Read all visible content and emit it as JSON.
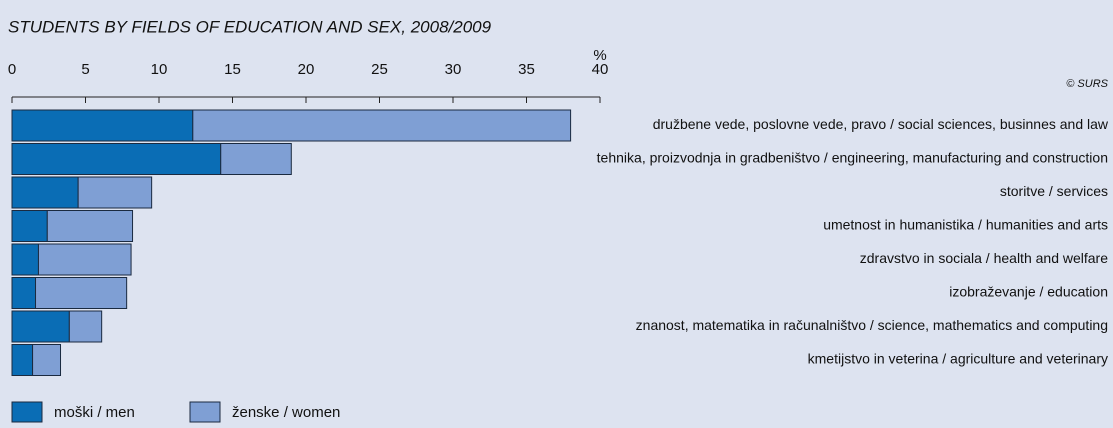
{
  "chart_data": {
    "type": "stacked_barh",
    "title": "STUDENTS BY FIELDS OF EDUCATION AND SEX, 2008/2009",
    "unit_label": "%",
    "source": "© SURS",
    "categories": [
      "družbene vede, poslovne vede, pravo / social sciences, businnes and law",
      "tehnika, proizvodnja in gradbeništvo / engineering, manufacturing and construction",
      "storitve / services",
      "umetnost in humanistika / humanities and arts",
      "zdravstvo in sociala / health and welfare",
      "izobraževanje / education",
      "znanost, matematika in računalništvo / science, mathematics and computing",
      "kmetijstvo in veterina / agriculture and veterinary"
    ],
    "series": [
      {
        "name": "moški / men",
        "color": "#0a6db5",
        "values": [
          12.3,
          14.2,
          4.5,
          2.4,
          1.8,
          1.6,
          3.9,
          1.4
        ]
      },
      {
        "name": "ženske / women",
        "color": "#7f9fd4",
        "values": [
          25.7,
          4.8,
          5.0,
          5.8,
          6.3,
          6.2,
          2.2,
          1.9
        ]
      }
    ],
    "xlim": [
      0,
      40
    ],
    "xticks": [
      0,
      5,
      10,
      15,
      20,
      25,
      30,
      35,
      40
    ]
  }
}
